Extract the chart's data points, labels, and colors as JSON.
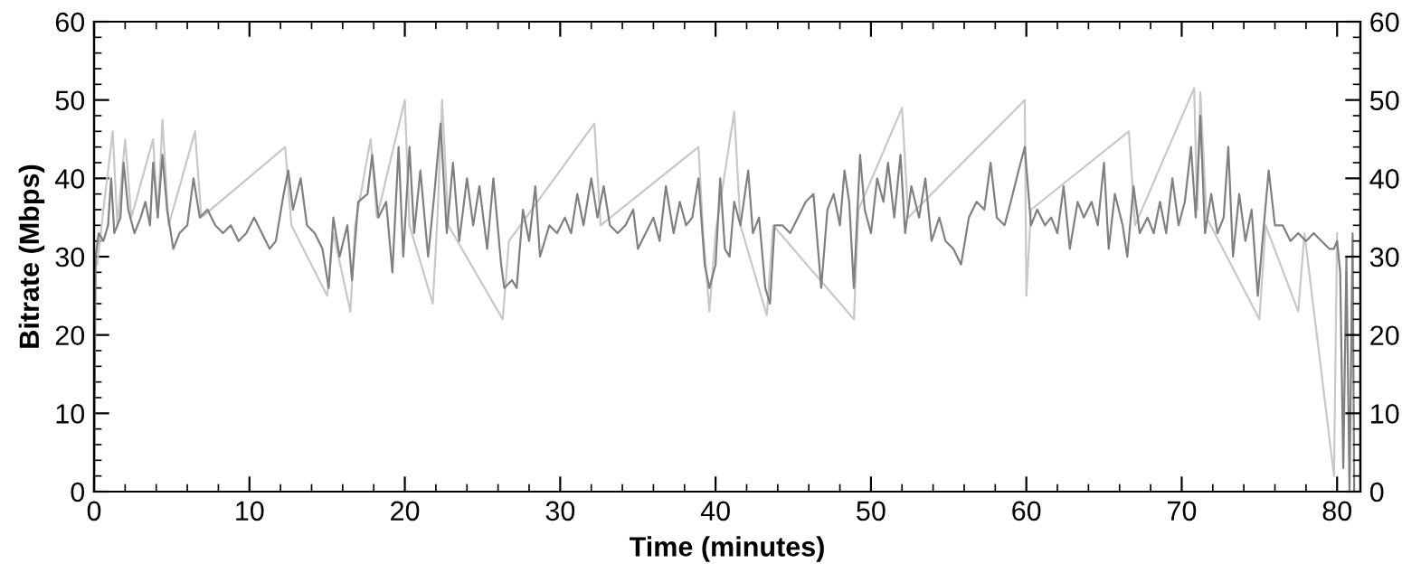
{
  "chart_data": {
    "type": "line",
    "xlabel": "Time (minutes)",
    "ylabel": "Bitrate (Mbps)",
    "xlim": [
      0,
      81.5
    ],
    "ylim": [
      0,
      60
    ],
    "y2lim": [
      0,
      60
    ],
    "xticks": [
      0,
      {
        "value": 2,
        "label": null
      },
      {
        "value": 4,
        "label": null
      },
      {
        "value": 6,
        "label": null
      },
      {
        "value": 8,
        "label": null
      },
      10,
      {
        "value": 12,
        "label": null
      },
      {
        "value": 14,
        "label": null
      },
      {
        "value": 16,
        "label": null
      },
      {
        "value": 18,
        "label": null
      },
      20,
      {
        "value": 22,
        "label": null
      },
      {
        "value": 24,
        "label": null
      },
      {
        "value": 26,
        "label": null
      },
      {
        "value": 28,
        "label": null
      },
      30,
      {
        "value": 32,
        "label": null
      },
      {
        "value": 34,
        "label": null
      },
      {
        "value": 36,
        "label": null
      },
      {
        "value": 38,
        "label": null
      },
      40,
      {
        "value": 42,
        "label": null
      },
      {
        "value": 44,
        "label": null
      },
      {
        "value": 46,
        "label": null
      },
      {
        "value": 48,
        "label": null
      },
      50,
      {
        "value": 52,
        "label": null
      },
      {
        "value": 54,
        "label": null
      },
      {
        "value": 56,
        "label": null
      },
      {
        "value": 58,
        "label": null
      },
      60,
      {
        "value": 62,
        "label": null
      },
      {
        "value": 64,
        "label": null
      },
      {
        "value": 66,
        "label": null
      },
      {
        "value": 68,
        "label": null
      },
      70,
      {
        "value": 72,
        "label": null
      },
      {
        "value": 74,
        "label": null
      },
      {
        "value": 76,
        "label": null
      },
      {
        "value": 78,
        "label": null
      },
      80
    ],
    "yticks": [
      0,
      {
        "value": 2,
        "label": null
      },
      {
        "value": 4,
        "label": null
      },
      {
        "value": 6,
        "label": null
      },
      {
        "value": 8,
        "label": null
      },
      10,
      {
        "value": 12,
        "label": null
      },
      {
        "value": 14,
        "label": null
      },
      {
        "value": 16,
        "label": null
      },
      {
        "value": 18,
        "label": null
      },
      20,
      {
        "value": 22,
        "label": null
      },
      {
        "value": 24,
        "label": null
      },
      {
        "value": 26,
        "label": null
      },
      {
        "value": 28,
        "label": null
      },
      30,
      {
        "value": 32,
        "label": null
      },
      {
        "value": 34,
        "label": null
      },
      {
        "value": 36,
        "label": null
      },
      {
        "value": 38,
        "label": null
      },
      40,
      {
        "value": 42,
        "label": null
      },
      {
        "value": 44,
        "label": null
      },
      {
        "value": 46,
        "label": null
      },
      {
        "value": 48,
        "label": null
      },
      50,
      {
        "value": 52,
        "label": null
      },
      {
        "value": 54,
        "label": null
      },
      {
        "value": 56,
        "label": null
      },
      {
        "value": 58,
        "label": null
      },
      60
    ],
    "y2ticks": [
      0,
      {
        "value": 2,
        "label": null
      },
      {
        "value": 4,
        "label": null
      },
      {
        "value": 6,
        "label": null
      },
      {
        "value": 8,
        "label": null
      },
      10,
      {
        "value": 12,
        "label": null
      },
      {
        "value": 14,
        "label": null
      },
      {
        "value": 16,
        "label": null
      },
      {
        "value": 18,
        "label": null
      },
      20,
      {
        "value": 22,
        "label": null
      },
      {
        "value": 24,
        "label": null
      },
      {
        "value": 26,
        "label": null
      },
      {
        "value": 28,
        "label": null
      },
      30,
      {
        "value": 32,
        "label": null
      },
      {
        "value": 34,
        "label": null
      },
      {
        "value": 36,
        "label": null
      },
      {
        "value": 38,
        "label": null
      },
      40,
      {
        "value": 42,
        "label": null
      },
      {
        "value": 44,
        "label": null
      },
      {
        "value": 46,
        "label": null
      },
      {
        "value": 48,
        "label": null
      },
      50,
      {
        "value": 52,
        "label": null
      },
      {
        "value": 54,
        "label": null
      },
      {
        "value": 56,
        "label": null
      },
      {
        "value": 58,
        "label": null
      },
      60
    ],
    "grid": false,
    "series": [
      {
        "color": "#c8c8c8",
        "x": [
          0.2,
          0.6,
          1.2,
          1.5,
          2.0,
          2.4,
          3.8,
          4.1,
          4.4,
          4.8,
          6.5,
          6.9,
          12.3,
          12.7,
          15.0,
          15.4,
          16.5,
          16.8,
          17.8,
          18.2,
          20.0,
          20.3,
          21.8,
          22.1,
          22.4,
          22.8,
          26.3,
          26.7,
          32.2,
          32.6,
          38.9,
          39.2,
          39.6,
          40.0,
          41.2,
          41.6,
          43.3,
          43.7,
          48.9,
          49.2,
          52.0,
          52.4,
          59.9,
          60.0,
          60.3,
          66.6,
          67.0,
          70.8,
          71.0,
          71.2,
          71.6,
          75.0,
          75.4,
          77.5,
          77.9,
          79.8,
          80.0
        ],
        "values": [
          29,
          36,
          46,
          34,
          45,
          35,
          45,
          35,
          47.5,
          34,
          46,
          35,
          44,
          34,
          25,
          33,
          23,
          34,
          45,
          35,
          50,
          34,
          24,
          35,
          50,
          34,
          22,
          32,
          47,
          34,
          44,
          33,
          23,
          33,
          48.5,
          34,
          22.5,
          34,
          22,
          36,
          49,
          35,
          50,
          25,
          36,
          46,
          34,
          51.5,
          36,
          51,
          35,
          22,
          34,
          23,
          33,
          2,
          33
        ]
      },
      {
        "color": "#808080",
        "x": [
          0,
          0.1,
          0.3,
          0.6,
          0.9,
          1.1,
          1.3,
          1.7,
          1.9,
          2.2,
          2.6,
          3.0,
          3.3,
          3.6,
          3.8,
          4.1,
          4.4,
          4.7,
          5.1,
          5.5,
          6.0,
          6.4,
          6.8,
          7.3,
          7.8,
          8.3,
          8.8,
          9.3,
          9.8,
          10.3,
          10.8,
          11.3,
          11.7,
          12.2,
          12.5,
          12.8,
          13.3,
          13.7,
          14.2,
          14.7,
          15.1,
          15.4,
          15.8,
          16.3,
          16.6,
          17.0,
          17.6,
          17.9,
          18.3,
          18.8,
          19.2,
          19.6,
          19.9,
          20.3,
          20.6,
          21.0,
          21.5,
          21.9,
          22.3,
          22.7,
          23.1,
          23.5,
          24.0,
          24.4,
          24.8,
          25.3,
          25.7,
          26.2,
          26.4,
          26.9,
          27.2,
          27.6,
          28.0,
          28.4,
          28.7,
          29.3,
          29.8,
          30.3,
          30.7,
          31.1,
          31.5,
          32.0,
          32.4,
          32.8,
          33.2,
          33.7,
          34.2,
          34.7,
          35.0,
          35.5,
          36.0,
          36.4,
          36.8,
          37.3,
          37.7,
          38.1,
          38.5,
          38.9,
          39.3,
          39.6,
          40.0,
          40.3,
          40.6,
          40.9,
          41.2,
          41.6,
          42.1,
          42.4,
          42.8,
          43.2,
          43.5,
          43.8,
          44.3,
          44.8,
          45.3,
          45.8,
          46.3,
          46.8,
          47.2,
          47.6,
          48.0,
          48.3,
          48.6,
          48.9,
          49.3,
          49.6,
          50.0,
          50.4,
          50.8,
          51.1,
          51.5,
          51.9,
          52.2,
          52.6,
          53.1,
          53.5,
          53.9,
          54.4,
          54.8,
          55.3,
          55.8,
          56.3,
          56.8,
          57.3,
          57.7,
          58.1,
          58.6,
          59.0,
          59.5,
          59.9,
          60.3,
          60.7,
          61.2,
          61.6,
          62.0,
          62.4,
          62.8,
          63.3,
          63.7,
          64.2,
          64.6,
          65.0,
          65.3,
          65.7,
          66.2,
          66.5,
          66.9,
          67.3,
          67.8,
          68.2,
          68.6,
          69.0,
          69.4,
          69.8,
          70.2,
          70.6,
          70.9,
          71.2,
          71.5,
          71.9,
          72.3,
          72.7,
          73.0,
          73.3,
          73.7,
          74.1,
          74.5,
          74.9,
          75.2,
          75.6,
          76.0,
          76.5,
          77.0,
          77.5,
          78.0,
          78.5,
          79.0,
          79.5,
          79.8,
          80.0,
          80.2,
          80.4,
          80.6,
          80.8,
          81.0,
          81.1
        ],
        "values": [
          0,
          30,
          33,
          32,
          34,
          40,
          33,
          35,
          42,
          36,
          33,
          35,
          37,
          34,
          42,
          35,
          43,
          36,
          31,
          33,
          34,
          40,
          35,
          36,
          34,
          33,
          34,
          32,
          33,
          35,
          33,
          31,
          32,
          38,
          41,
          36,
          40,
          34,
          33,
          31,
          26,
          35,
          30,
          34,
          27,
          37,
          38,
          43,
          35,
          37,
          28,
          44,
          30,
          44,
          33,
          41,
          30,
          38,
          47,
          33,
          42,
          32,
          40,
          34,
          39,
          31,
          40,
          29,
          26,
          27,
          26,
          36,
          32,
          39,
          30,
          34,
          33,
          35,
          33,
          38,
          34,
          40,
          35,
          39,
          34,
          33,
          34,
          36,
          31,
          33,
          35,
          32,
          39,
          33,
          37,
          34,
          35,
          40,
          29,
          26,
          29,
          40,
          31,
          30,
          37,
          34,
          41,
          33,
          35,
          26,
          24,
          34,
          34,
          33,
          35,
          37,
          38,
          26,
          36,
          38,
          34,
          41,
          37,
          26,
          43,
          36,
          33,
          40,
          37,
          42,
          35,
          43,
          33,
          39,
          35,
          40,
          32,
          35,
          32,
          31,
          29,
          35,
          37,
          36,
          42,
          35,
          34,
          37,
          41,
          44,
          34,
          36,
          34,
          35,
          33,
          39,
          31,
          37,
          35,
          37,
          34,
          42,
          31,
          38,
          34,
          30,
          39,
          33,
          35,
          33,
          37,
          33,
          40,
          34,
          37,
          44,
          35,
          48,
          33,
          38,
          33,
          35,
          44,
          30,
          38,
          32,
          36,
          25,
          32,
          41,
          34,
          34,
          32,
          33,
          32,
          33,
          32,
          31,
          31,
          32,
          28,
          3,
          30,
          0,
          33,
          0
        ]
      }
    ]
  }
}
